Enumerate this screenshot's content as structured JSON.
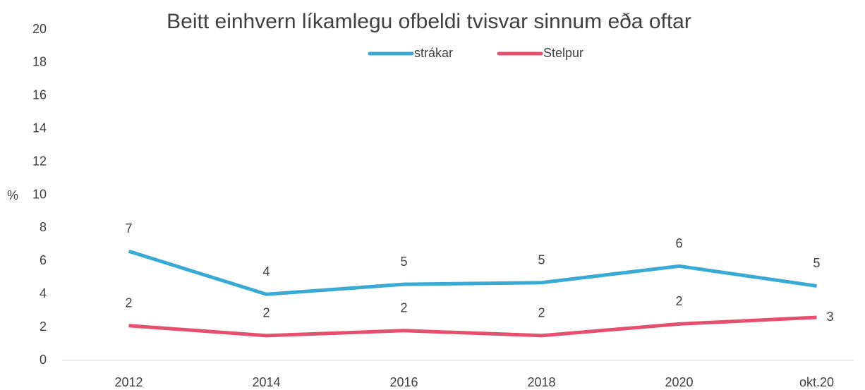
{
  "chart_data": {
    "type": "line",
    "title": "Beitt einhvern líkamlegu ofbeldi tvisvar sinnum eða oftar",
    "y_label": "%",
    "categories": [
      "2012",
      "2014",
      "2016",
      "2018",
      "2020",
      "okt.20"
    ],
    "series": [
      {
        "name": "strákar",
        "color": "#3aaad4",
        "values": [
          6.6,
          4.0,
          4.6,
          4.7,
          5.7,
          4.5
        ],
        "value_labels": [
          "7",
          "4",
          "5",
          "5",
          "6",
          "5"
        ]
      },
      {
        "name": "Stelpur",
        "color": "#e5506e",
        "values": [
          2.1,
          1.5,
          1.8,
          1.5,
          2.2,
          2.6
        ],
        "value_labels": [
          "2",
          "2",
          "2",
          "2",
          "2",
          "3"
        ]
      }
    ],
    "ylim": [
      0,
      20
    ],
    "yticks": [
      0,
      2,
      4,
      6,
      8,
      10,
      12,
      14,
      16,
      18,
      20
    ],
    "grid": false,
    "legend": "top"
  }
}
